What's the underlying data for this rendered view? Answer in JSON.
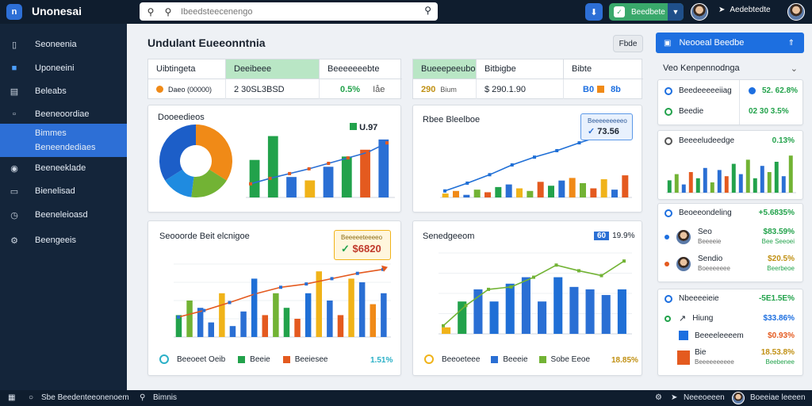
{
  "app": {
    "logo": "n",
    "title": "Unonesai"
  },
  "search": {
    "value": "",
    "placeholder": "Ibeedsteecenengo"
  },
  "topbar": {
    "green_button": "Beedbete",
    "user_name": "Aedebtedte"
  },
  "sidebar": {
    "items": [
      {
        "label": "Seoneenia",
        "icon": "panel-icon"
      },
      {
        "label": "Uponeeini",
        "icon": "chart-icon"
      },
      {
        "label": "Beleabs",
        "icon": "layout-icon"
      },
      {
        "label": "Beeneoordiae",
        "icon": "file-icon"
      },
      {
        "label": "Bimmes\nBeneendediaes",
        "icon": "",
        "active": true
      },
      {
        "label": "Beeneeklade",
        "icon": "toggle-icon"
      },
      {
        "label": "Bienelisad",
        "icon": "graph-icon"
      },
      {
        "label": "Beeneleioasd",
        "icon": "clock-icon"
      },
      {
        "label": "Beengeeis",
        "icon": "gear-icon"
      }
    ]
  },
  "main": {
    "title": "Undulant Eueeonntnia",
    "filter_button": "Fbde"
  },
  "table_left": {
    "headers": [
      "Uibtingeta",
      "Deeibeee",
      "Beeeeeeebte"
    ],
    "row": {
      "c1": "Daeo (00000)",
      "c2": "2 30SL3BSD",
      "c3a": "0.5%",
      "c3b": "Iåe"
    }
  },
  "table_right": {
    "headers": [
      "Bueeepeeubo",
      "Bitbigbe",
      "Bibte"
    ],
    "row": {
      "c1a": "290",
      "c1b": "Bium",
      "c2": "$ 290.1.90",
      "c3a": "B0",
      "c3b": "8b"
    }
  },
  "card1": {
    "title": "Dooeedieos",
    "badge": "U.97"
  },
  "card2": {
    "title": "Rbee Bleelboe",
    "tooltip_title": "Beeeeeeeeeo",
    "tooltip_value": "73.56"
  },
  "card3": {
    "title": "Seooorde Beit elcnigoe",
    "badge": "$6820",
    "badge_title": "Beeeeeteeeeo",
    "legend": [
      "Beeoeet Oeib",
      "Beeie",
      "Beeiesee"
    ],
    "pct": "1.51%"
  },
  "card4": {
    "title": "Senedgeeom",
    "badge_num": "60",
    "badge_pct": "19.9%",
    "legend": [
      "Beeoeteee",
      "Beeeie",
      "Sobe Eeoe"
    ],
    "pct": "18.85%"
  },
  "right_panel": {
    "header": "Neooeal Beedbe",
    "subheader": "Veo Kenpennodnga",
    "kpis": [
      {
        "label": "Beedeeeeeiiag",
        "value": "52. 62.8%"
      },
      {
        "label": "Beedie",
        "value": "02 30  3.5%"
      }
    ],
    "mini_title": "Beeeeludeedge",
    "mini_pct": "0.13%",
    "section1": {
      "title": "Beoeeondeling",
      "pct": "+5.6835%"
    },
    "people": [
      {
        "name": "Seo",
        "sub": "Beeeeie",
        "value": "$83.59%",
        "sub_value": "Bee Seeoei"
      },
      {
        "name": "Sendio",
        "sub": "Boeeeeeee",
        "value": "$20.5%",
        "sub_value": "Beerbeoe"
      }
    ],
    "section2": {
      "title": "Nbeeeeieie",
      "pct": "-5E1.5E%"
    },
    "items2": [
      {
        "name": "Hiung",
        "value": "$33.86%"
      },
      {
        "name": "Beeeeleeeem",
        "value": "$0.93%"
      },
      {
        "name": "Bie",
        "value": "18.53.8%"
      }
    ],
    "items2_sub": [
      "Beeeeeeeeee",
      "Beebenee"
    ]
  },
  "bottombar": {
    "left": "Sbe Beedenteeonenoem",
    "mid": "Bimnis",
    "right1": "Neeeoeeen",
    "right2": "Boeeiae leeeen"
  },
  "chart_data": [
    {
      "type": "pie",
      "values": [
        34,
        18,
        14,
        34
      ],
      "colors": [
        "#f08a17",
        "#72b334",
        "#1f8be0",
        "#1c5ec8"
      ]
    },
    {
      "type": "bar",
      "values": [
        55,
        90,
        30,
        25,
        45,
        60,
        70,
        85
      ],
      "line": [
        20,
        28,
        35,
        42,
        50,
        58,
        66,
        80
      ],
      "colors": [
        "#22a24b",
        "#22a24b",
        "#2a6fd4",
        "#f0b319",
        "#2a6fd4",
        "#22a24b",
        "#e45a1f",
        "#2a6fd4"
      ]
    },
    {
      "type": "bar",
      "values": [
        6,
        10,
        4,
        12,
        8,
        16,
        20,
        14,
        10,
        24,
        18,
        26,
        30,
        22,
        14,
        28,
        12,
        34
      ],
      "line": [
        10,
        22,
        35,
        50,
        62,
        72,
        84,
        95,
        100
      ],
      "colors": [
        "#f0b319",
        "#f08a17",
        "#2a6fd4",
        "#72b334",
        "#e45a1f",
        "#22a24b",
        "#2a6fd4",
        "#f0b319",
        "#72b334",
        "#e45a1f",
        "#22a24b",
        "#2a6fd4",
        "#f08a17",
        "#72b334",
        "#e45a1f",
        "#f0b319",
        "#2a6fd4",
        "#e45a1f"
      ]
    },
    {
      "type": "bar",
      "values": [
        30,
        50,
        40,
        20,
        60,
        15,
        35,
        80,
        30,
        60,
        40,
        25,
        60,
        90,
        50,
        30,
        80,
        75,
        45,
        60
      ],
      "line": [
        30,
        40,
        52,
        65,
        75,
        80,
        88,
        96,
        102
      ],
      "colors": [
        "#22a24b",
        "#72b334",
        "#2a6fd4",
        "#2a6fd4",
        "#f0b319",
        "#2a6fd4",
        "#2a6fd4",
        "#1f6fd6",
        "#e45a1f",
        "#72b334",
        "#22a24b",
        "#e45a1f",
        "#1f6fd6",
        "#f0b319",
        "#2a6fd4",
        "#e45a1f",
        "#f0b319",
        "#2a6fd4",
        "#f08a17",
        "#2a6fd4"
      ]
    },
    {
      "type": "bar",
      "values": [
        8,
        40,
        55,
        40,
        62,
        70,
        40,
        70,
        58,
        55,
        48,
        55
      ],
      "line": [
        10,
        35,
        55,
        58,
        70,
        85,
        78,
        72,
        90
      ],
      "colors": [
        "#f0b319",
        "#22a24b",
        "#2a6fd4",
        "#1f6fd6",
        "#1f6fd6",
        "#2a6fd4",
        "#2a6fd4",
        "#1f6fd6",
        "#2a6fd4",
        "#2a6fd4",
        "#2a6fd4",
        "#1f6fd6"
      ]
    },
    {
      "type": "bar",
      "values": [
        30,
        45,
        20,
        50,
        35,
        60,
        25,
        55,
        40,
        70,
        45,
        80,
        35,
        65,
        50,
        75,
        40,
        90
      ],
      "colors": [
        "#22a24b",
        "#72b334",
        "#2a6fd4",
        "#e45a1f",
        "#22a24b",
        "#2a6fd4",
        "#72b334",
        "#2a6fd4",
        "#e45a1f",
        "#22a24b",
        "#2a6fd4",
        "#72b334",
        "#22a24b",
        "#2a6fd4",
        "#72b334",
        "#22a24b",
        "#2a6fd4",
        "#72b334"
      ]
    }
  ]
}
